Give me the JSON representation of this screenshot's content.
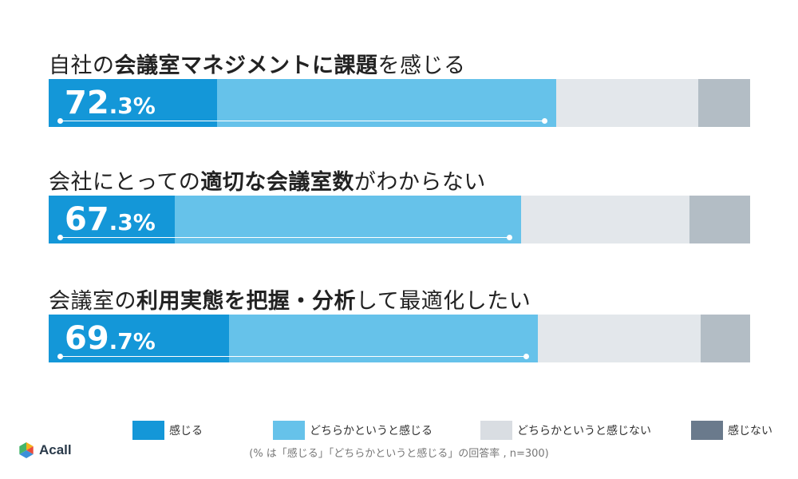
{
  "chart_data": {
    "type": "bar",
    "orientation": "horizontal",
    "stacked": true,
    "categories": [
      {
        "pre": "自社の",
        "bold": "会議室マネジメントに課題",
        "post": "を感じる"
      },
      {
        "pre": "会社にとっての",
        "bold": "適切な会議室数",
        "post": "がわからない"
      },
      {
        "pre": "会議室の",
        "bold": "利用実態を把握・分析",
        "post": "して最適化したい"
      }
    ],
    "series": [
      {
        "name": "感じる",
        "color": "#1497d8",
        "values": [
          24.0,
          18.0,
          25.7
        ]
      },
      {
        "name": "どちらかというと感じる",
        "color": "#66c2ea",
        "values": [
          48.3,
          49.3,
          44.0
        ]
      },
      {
        "name": "どちらかというと感じない",
        "color": "#e3e7eb",
        "values": [
          20.3,
          24.0,
          23.3
        ]
      },
      {
        "name": "感じない",
        "color": "#b3bdc5",
        "values": [
          7.4,
          8.7,
          7.0
        ]
      }
    ],
    "summary_labels": [
      {
        "int": "72",
        "dec": ".3%"
      },
      {
        "int": "67",
        "dec": ".3%"
      },
      {
        "int": "69",
        "dec": ".7%"
      }
    ],
    "summary_values": [
      72.3,
      67.3,
      69.7
    ],
    "xlim": [
      0,
      100
    ],
    "legend_position": "bottom",
    "legend_colors": [
      "#1497d8",
      "#66c2ea",
      "#d9dde2",
      "#6a7a8c"
    ],
    "note": "(% は「感じる」「どちらかというと感じる」の回答率 , n=300)"
  },
  "brand": {
    "name": "Acall",
    "logo_colors": [
      "#f6b21a",
      "#e94b3c",
      "#3c8fd9",
      "#44b56a"
    ]
  }
}
